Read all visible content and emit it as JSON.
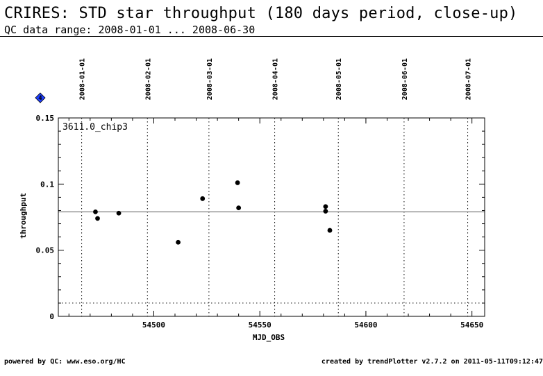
{
  "header": {
    "title": "CRIRES: STD star throughput (180 days period, close-up)",
    "subtitle": "QC data range: 2008-01-01 ... 2008-06-30"
  },
  "footer": {
    "left": "powered by QC: www.eso.org/HC",
    "right": "created by trendPlotter v2.7.2 on 2011-05-11T09:12:47"
  },
  "legend_marker": {
    "symbol": "diamond",
    "label": "4",
    "color": "#1f3fff"
  },
  "chart_data": {
    "type": "scatter",
    "title": "",
    "xlabel": "MJD_OBS",
    "ylabel": "throughput",
    "panel_label": "3611.0_chip3",
    "xlim": [
      54455,
      54656
    ],
    "ylim": [
      0,
      0.15
    ],
    "x_ticks": [
      54500,
      54550,
      54600,
      54650
    ],
    "x_tick_labels": [
      "54500",
      "54550",
      "54600",
      "54650"
    ],
    "y_ticks": [
      0,
      0.05,
      0.1,
      0.15
    ],
    "y_tick_labels": [
      "0",
      "0.05",
      "0.1",
      "0.15"
    ],
    "date_ticks": [
      {
        "label": "2008-01-01",
        "mjd": 54466
      },
      {
        "label": "2008-02-01",
        "mjd": 54497
      },
      {
        "label": "2008-03-01",
        "mjd": 54526
      },
      {
        "label": "2008-04-01",
        "mjd": 54557
      },
      {
        "label": "2008-05-01",
        "mjd": 54587
      },
      {
        "label": "2008-06-01",
        "mjd": 54618
      },
      {
        "label": "2008-07-01",
        "mjd": 54648
      }
    ],
    "reference_lines": [
      {
        "y": 0.079,
        "style": "solid",
        "color": "#555555"
      },
      {
        "y": 0.01,
        "style": "dotted",
        "color": "#000000"
      }
    ],
    "series": [
      {
        "color": "#000000",
        "points": [
          {
            "x": 54472.5,
            "y": 0.079
          },
          {
            "x": 54473.5,
            "y": 0.074
          },
          {
            "x": 54483.5,
            "y": 0.078
          },
          {
            "x": 54511.5,
            "y": 0.056
          },
          {
            "x": 54523.0,
            "y": 0.089
          },
          {
            "x": 54539.5,
            "y": 0.101
          },
          {
            "x": 54540.0,
            "y": 0.082
          },
          {
            "x": 54581.0,
            "y": 0.083
          },
          {
            "x": 54581.0,
            "y": 0.0795
          },
          {
            "x": 54583.0,
            "y": 0.065
          }
        ]
      }
    ]
  }
}
